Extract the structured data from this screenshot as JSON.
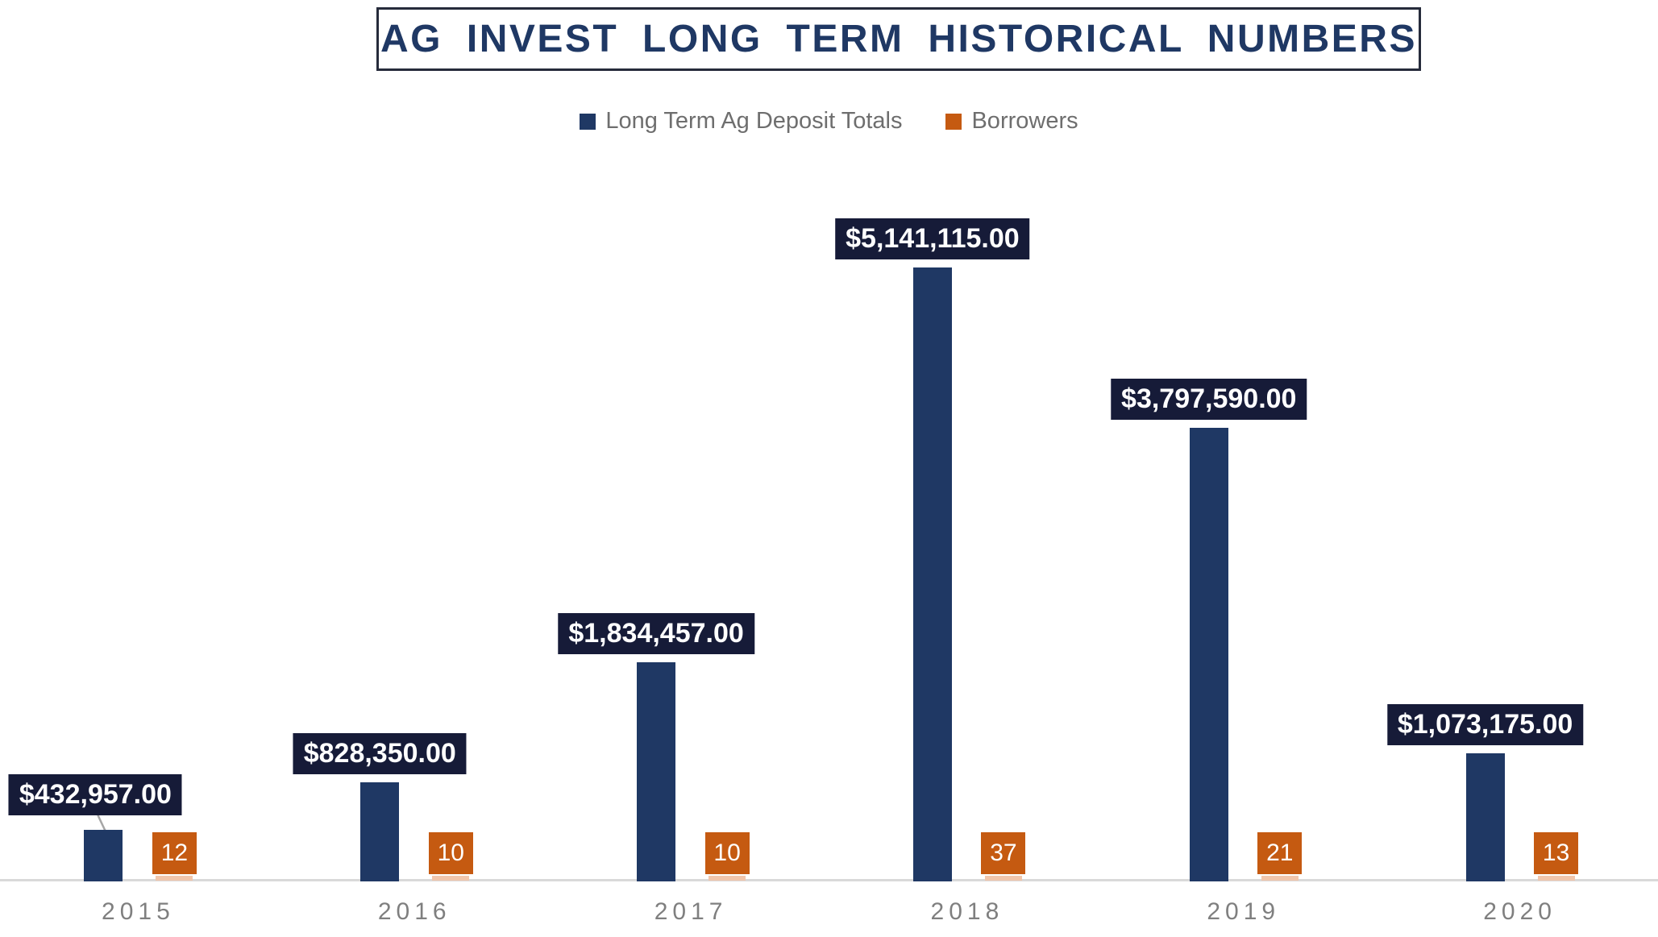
{
  "title": "AG INVEST LONG TERM HISTORICAL NUMBERS",
  "legend": {
    "items": [
      {
        "label": "Long Term Ag Deposit Totals",
        "color": "#1F3864"
      },
      {
        "label": "Borrowers",
        "color": "#C55A11"
      }
    ]
  },
  "colors": {
    "title_text": "#1F3864",
    "title_border": "#262B3B",
    "legend_text": "#6E6E6E",
    "deposit_bar": "#1F3864",
    "value_label_bg": "#161B38",
    "value_label_text": "#FFFFFF",
    "borrower_badge_bg": "#C55A11",
    "borrower_badge_text": "#FFFFFF",
    "borrower_bar": "#F1C6AC",
    "axis_line": "#D9D9D9",
    "axis_text": "#7F7F7F",
    "leader_line": "#A6A6A6"
  },
  "chart_data": {
    "type": "bar",
    "title": "AG INVEST LONG TERM HISTORICAL NUMBERS",
    "categories": [
      "2015",
      "2016",
      "2017",
      "2018",
      "2019",
      "2020"
    ],
    "series": [
      {
        "name": "Long Term Ag Deposit Totals",
        "color": "#1F3864",
        "values": [
          432957,
          828350,
          1834457,
          5141115,
          3797590,
          1073175
        ],
        "labels": [
          "$432,957.00",
          "$828,350.00",
          "$1,834,457.00",
          "$5,141,115.00",
          "$3,797,590.00",
          "$1,073,175.00"
        ]
      },
      {
        "name": "Borrowers",
        "color": "#C55A11",
        "values": [
          12,
          10,
          10,
          37,
          21,
          13
        ],
        "labels": [
          "12",
          "10",
          "10",
          "37",
          "21",
          "13"
        ]
      }
    ],
    "ylim": [
      0,
      5141115
    ],
    "grid": false,
    "legend_position": "top",
    "value_axis_visible": false,
    "moved_label_category": "2015"
  }
}
